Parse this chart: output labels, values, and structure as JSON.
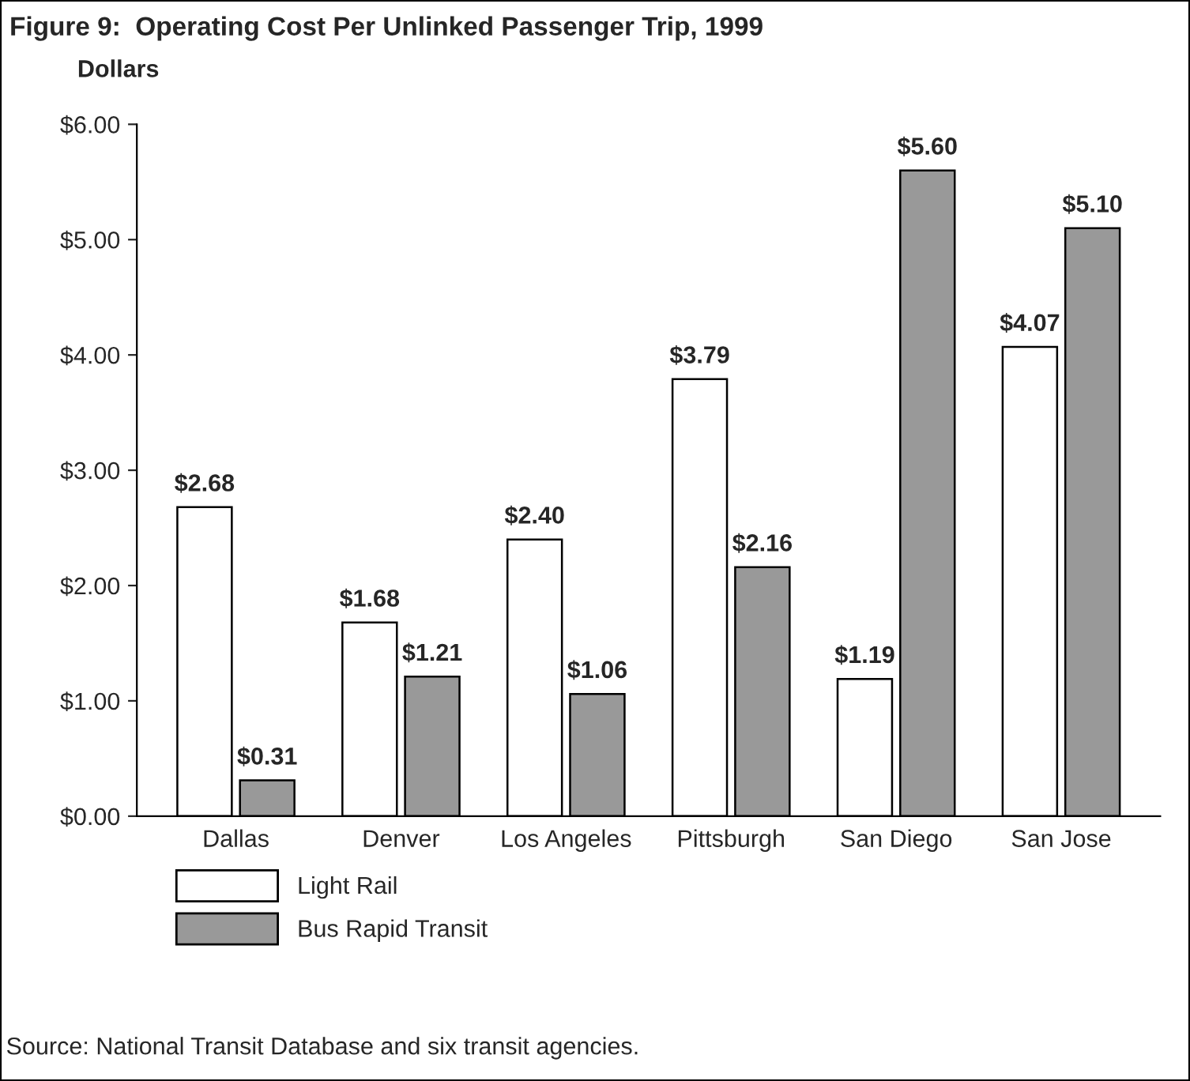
{
  "chart_data": {
    "type": "bar",
    "title": "Figure 9:  Operating Cost Per Unlinked Passenger Trip, 1999",
    "ylabel": "Dollars",
    "categories": [
      "Dallas",
      "Denver",
      "Los Angeles",
      "Pittsburgh",
      "San Diego",
      "San Jose"
    ],
    "series": [
      {
        "name": "Light Rail",
        "color": "#ffffff",
        "values": [
          2.68,
          1.68,
          2.4,
          3.79,
          1.19,
          4.07
        ],
        "value_labels": [
          "$2.68",
          "$1.68",
          "$2.40",
          "$3.79",
          "$1.19",
          "$4.07"
        ]
      },
      {
        "name": "Bus Rapid Transit",
        "color": "#999999",
        "values": [
          0.31,
          1.21,
          1.06,
          2.16,
          5.6,
          5.1
        ],
        "value_labels": [
          "$0.31",
          "$1.21",
          "$1.06",
          "$2.16",
          "$5.60",
          "$5.10"
        ]
      }
    ],
    "ylim": [
      0,
      6
    ],
    "yticks": [
      {
        "value": 0,
        "label": "$0.00"
      },
      {
        "value": 1,
        "label": "$1.00"
      },
      {
        "value": 2,
        "label": "$2.00"
      },
      {
        "value": 3,
        "label": "$3.00"
      },
      {
        "value": 4,
        "label": "$4.00"
      },
      {
        "value": 5,
        "label": "$5.00"
      },
      {
        "value": 6,
        "label": "$6.00"
      }
    ],
    "grid": false,
    "legend": "bottom",
    "annotations": [
      "Source: National Transit Database and six transit agencies."
    ]
  }
}
